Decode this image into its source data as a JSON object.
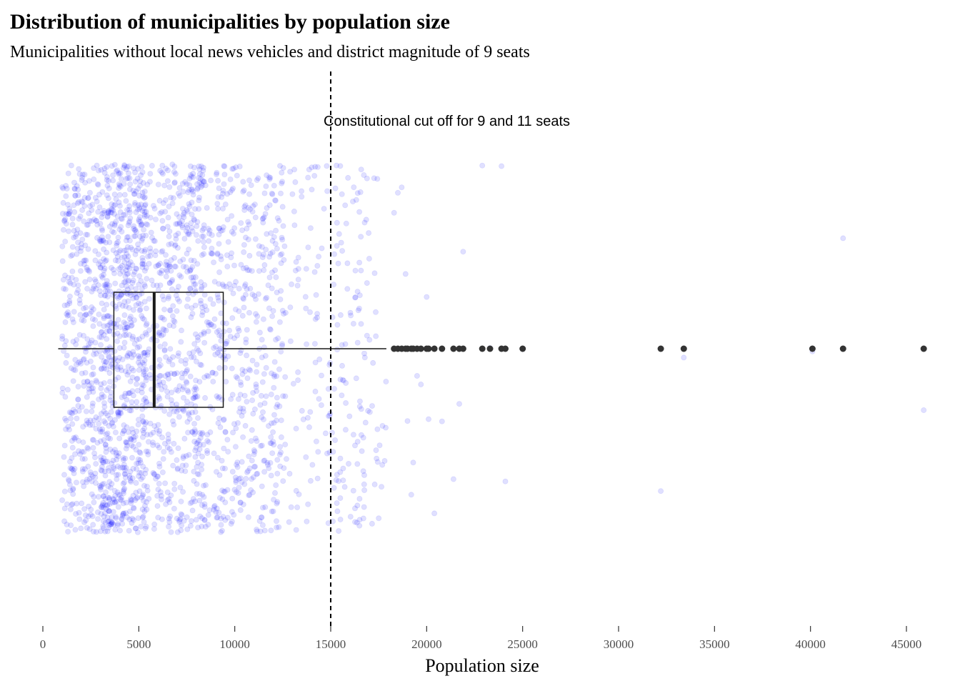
{
  "chart_data": {
    "type": "boxplot-with-jitter",
    "title": "Distribution of municipalities by population size",
    "subtitle": "Municipalities without local news vehicles and district magnitude of 9 seats",
    "xlabel": "Population size",
    "ylabel": "",
    "xlim": [
      0,
      46000
    ],
    "x_ticks": [
      0,
      5000,
      10000,
      15000,
      20000,
      25000,
      30000,
      35000,
      40000,
      45000
    ],
    "x_tick_labels": [
      "0",
      "5000",
      "10000",
      "15000",
      "20000",
      "25000",
      "30000",
      "35000",
      "40000",
      "45000"
    ],
    "grid": false,
    "box": {
      "whisker_low": 800,
      "q1": 3700,
      "median": 5800,
      "q3": 9400,
      "whisker_high": 17900
    },
    "outliers": [
      18300,
      18500,
      18700,
      18900,
      19000,
      19200,
      19300,
      19500,
      19700,
      20000,
      20100,
      20400,
      20800,
      21400,
      21700,
      21900,
      22900,
      23300,
      23900,
      24100,
      25000,
      32200,
      33400,
      40100,
      41700,
      45900
    ],
    "reference_line": {
      "x": 15000,
      "style": "dashed",
      "label": "Constitutional cut off for 9 and 11 seats"
    },
    "jitter_points": {
      "color": "#0000ff",
      "opacity": 0.12,
      "n_approx": 2600,
      "distribution_note": "dense between 1000 and 15000, sparse beyond"
    },
    "colors": {
      "box": "#1a1a1a",
      "outlier": "#333333",
      "jitter": "#0000ff"
    }
  }
}
